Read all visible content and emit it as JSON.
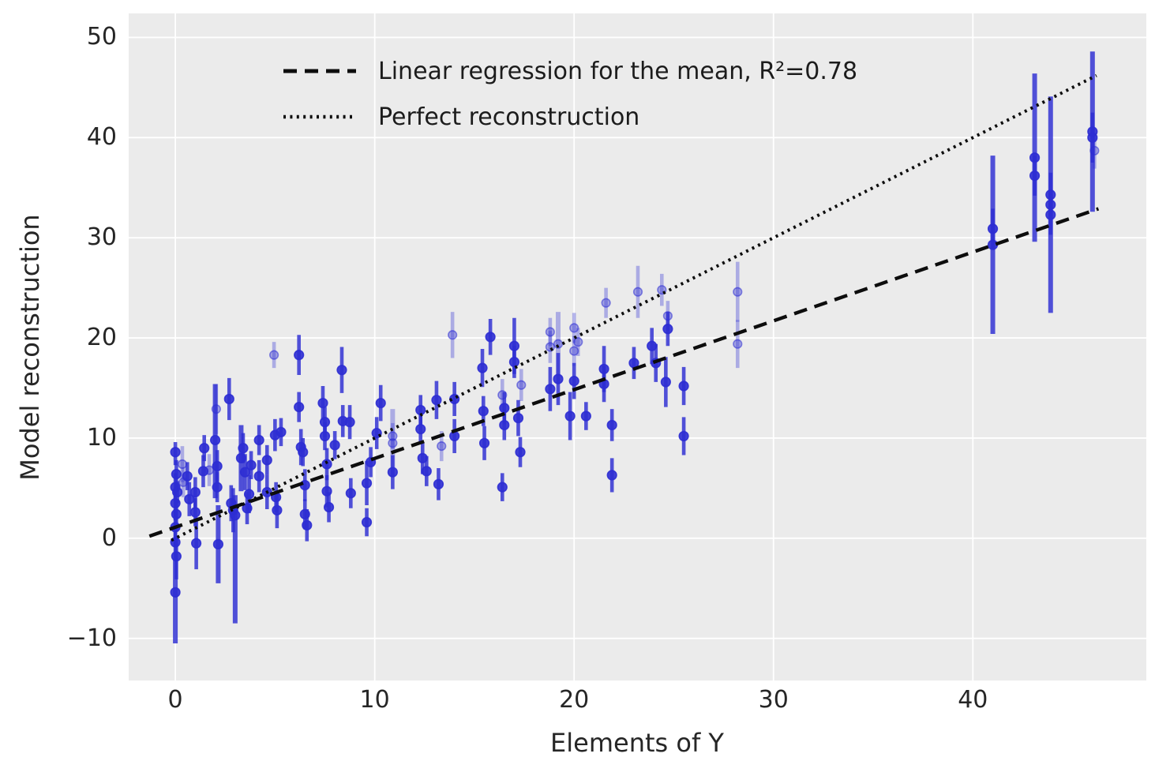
{
  "figure": {
    "background": "#ffffff",
    "axes_background": "#ebebeb",
    "grid_color": "#ffffff",
    "text_color": "#262626",
    "point_color": "#2d2dd3",
    "line_color": "#0d0d0d"
  },
  "chart_data": {
    "type": "scatter",
    "title": "",
    "xlabel": "Elements of Y",
    "ylabel": "Model reconstruction",
    "xlim": [
      -2.34,
      48.7
    ],
    "ylim": [
      -14.2,
      52.4
    ],
    "xticks": [
      0,
      10,
      20,
      30,
      40
    ],
    "yticks": [
      -10,
      0,
      10,
      20,
      30,
      40,
      50
    ],
    "grid": true,
    "legend": {
      "position": "upper left",
      "frame": false,
      "entries": [
        {
          "label": "Linear regression for the mean, R²=0.78",
          "style": "dashed"
        },
        {
          "label": "Perfect reconstruction",
          "style": "dotted"
        }
      ]
    },
    "lines": {
      "regression": {
        "x1": -1.3,
        "y1": 0.21,
        "x2": 46.3,
        "y2": 32.9,
        "slope": 0.687,
        "intercept": 1.1,
        "r_squared": 0.78,
        "style": "dashed"
      },
      "identity": {
        "x1": -0.2,
        "y1": -0.2,
        "x2": 46.2,
        "y2": 46.2,
        "style": "dotted"
      }
    },
    "points_format": [
      "x",
      "y",
      "err_below",
      "err_above",
      "opacity_class_1dark_0light"
    ],
    "points": [
      [
        0.0,
        8.6,
        1.3,
        1.0,
        1
      ],
      [
        0.05,
        6.4,
        1.6,
        1.4,
        1
      ],
      [
        0.0,
        5.1,
        1.4,
        1.4,
        1
      ],
      [
        0.1,
        4.6,
        1.1,
        1.1,
        1
      ],
      [
        0.0,
        3.5,
        1.7,
        1.5,
        1
      ],
      [
        0.05,
        2.4,
        1.5,
        1.5,
        1
      ],
      [
        0.0,
        1.1,
        2.0,
        1.8,
        1
      ],
      [
        0.0,
        -0.4,
        1.6,
        1.6,
        1
      ],
      [
        0.05,
        -1.8,
        2.3,
        2.0,
        1
      ],
      [
        0.0,
        -5.4,
        5.1,
        3.4,
        1
      ],
      [
        0.35,
        7.4,
        1.8,
        1.8,
        0
      ],
      [
        0.4,
        5.6,
        1.5,
        1.5,
        0
      ],
      [
        0.6,
        6.2,
        1.4,
        1.4,
        1
      ],
      [
        0.7,
        3.9,
        1.7,
        1.7,
        1
      ],
      [
        1.0,
        4.6,
        1.5,
        1.5,
        1
      ],
      [
        1.0,
        2.6,
        1.4,
        1.4,
        1
      ],
      [
        1.05,
        -0.5,
        2.6,
        2.6,
        1
      ],
      [
        1.4,
        6.7,
        1.6,
        1.6,
        1
      ],
      [
        1.45,
        9.0,
        1.3,
        1.3,
        1
      ],
      [
        1.7,
        6.8,
        1.6,
        1.6,
        0
      ],
      [
        2.0,
        9.8,
        5.8,
        5.6,
        1
      ],
      [
        2.05,
        12.9,
        2.5,
        2.5,
        0
      ],
      [
        2.1,
        7.2,
        1.6,
        1.6,
        1
      ],
      [
        2.1,
        5.1,
        1.5,
        1.5,
        1
      ],
      [
        2.15,
        -0.6,
        3.9,
        3.9,
        1
      ],
      [
        2.7,
        13.9,
        2.1,
        2.1,
        1
      ],
      [
        2.8,
        3.5,
        1.8,
        1.8,
        1
      ],
      [
        2.9,
        2.8,
        2.2,
        2.2,
        1
      ],
      [
        3.0,
        2.3,
        10.8,
        2.0,
        1
      ],
      [
        3.3,
        8.0,
        3.3,
        3.3,
        1
      ],
      [
        3.4,
        9.0,
        1.5,
        1.5,
        1
      ],
      [
        3.5,
        6.6,
        1.8,
        1.8,
        1
      ],
      [
        3.6,
        3.0,
        1.6,
        1.6,
        1
      ],
      [
        3.7,
        4.4,
        1.9,
        1.9,
        1
      ],
      [
        3.8,
        7.3,
        1.4,
        1.4,
        1
      ],
      [
        4.2,
        9.8,
        1.5,
        1.5,
        1
      ],
      [
        4.2,
        6.2,
        1.6,
        1.6,
        1
      ],
      [
        4.6,
        7.8,
        1.5,
        1.5,
        1
      ],
      [
        4.6,
        4.6,
        1.7,
        1.7,
        1
      ],
      [
        4.95,
        18.3,
        1.3,
        1.3,
        0
      ],
      [
        5.0,
        10.3,
        1.6,
        1.6,
        1
      ],
      [
        5.05,
        4.1,
        1.5,
        1.5,
        1
      ],
      [
        5.1,
        2.8,
        1.8,
        1.8,
        1
      ],
      [
        5.3,
        10.6,
        1.4,
        1.4,
        1
      ],
      [
        6.2,
        18.3,
        2.0,
        2.0,
        1
      ],
      [
        6.2,
        13.1,
        1.5,
        1.5,
        1
      ],
      [
        6.3,
        9.1,
        1.8,
        1.8,
        1
      ],
      [
        6.4,
        8.6,
        1.4,
        1.4,
        1
      ],
      [
        6.5,
        5.3,
        1.6,
        1.6,
        1
      ],
      [
        6.5,
        2.4,
        1.5,
        1.5,
        1
      ],
      [
        6.6,
        1.3,
        1.6,
        1.6,
        1
      ],
      [
        7.4,
        13.5,
        1.7,
        1.7,
        1
      ],
      [
        7.5,
        11.6,
        1.5,
        1.5,
        1
      ],
      [
        7.5,
        10.2,
        1.4,
        1.4,
        1
      ],
      [
        7.6,
        7.4,
        1.6,
        1.6,
        1
      ],
      [
        7.6,
        4.7,
        1.6,
        1.6,
        1
      ],
      [
        7.7,
        3.1,
        1.5,
        1.5,
        1
      ],
      [
        8.0,
        9.3,
        1.4,
        1.4,
        1
      ],
      [
        8.35,
        16.8,
        2.3,
        2.3,
        1
      ],
      [
        8.4,
        11.7,
        1.6,
        1.6,
        1
      ],
      [
        8.75,
        11.6,
        1.7,
        1.7,
        1
      ],
      [
        8.8,
        4.5,
        1.5,
        1.5,
        1
      ],
      [
        9.6,
        5.5,
        2.2,
        2.2,
        1
      ],
      [
        9.6,
        1.6,
        1.4,
        1.4,
        1
      ],
      [
        9.8,
        7.6,
        1.5,
        1.5,
        1
      ],
      [
        10.1,
        10.5,
        1.6,
        1.6,
        1
      ],
      [
        10.3,
        13.5,
        1.8,
        1.8,
        1
      ],
      [
        10.9,
        10.2,
        1.3,
        1.3,
        0
      ],
      [
        10.9,
        9.5,
        3.4,
        3.4,
        0
      ],
      [
        10.9,
        6.6,
        1.7,
        1.7,
        1
      ],
      [
        12.3,
        12.8,
        1.5,
        1.5,
        1
      ],
      [
        12.3,
        10.9,
        1.5,
        1.5,
        1
      ],
      [
        12.4,
        8.0,
        1.6,
        1.6,
        1
      ],
      [
        12.6,
        6.7,
        1.5,
        1.5,
        1
      ],
      [
        13.1,
        13.8,
        1.9,
        1.9,
        1
      ],
      [
        13.2,
        5.4,
        1.6,
        1.6,
        1
      ],
      [
        13.35,
        9.2,
        1.5,
        1.5,
        0
      ],
      [
        13.9,
        20.3,
        2.3,
        2.3,
        0
      ],
      [
        14.0,
        13.9,
        1.7,
        1.7,
        1
      ],
      [
        14.0,
        10.2,
        1.7,
        1.7,
        1
      ],
      [
        15.4,
        17.0,
        1.9,
        1.9,
        1
      ],
      [
        15.45,
        12.7,
        1.5,
        1.5,
        1
      ],
      [
        15.5,
        9.5,
        1.7,
        1.7,
        1
      ],
      [
        15.8,
        20.1,
        1.8,
        1.8,
        1
      ],
      [
        16.4,
        14.3,
        1.6,
        1.6,
        0
      ],
      [
        16.4,
        5.1,
        1.4,
        1.4,
        1
      ],
      [
        16.5,
        13.0,
        1.6,
        1.6,
        1
      ],
      [
        16.5,
        11.3,
        1.5,
        1.5,
        1
      ],
      [
        17.0,
        19.2,
        2.8,
        2.8,
        1
      ],
      [
        17.0,
        17.6,
        1.6,
        1.6,
        1
      ],
      [
        17.2,
        12.0,
        1.8,
        1.8,
        1
      ],
      [
        17.3,
        8.6,
        1.5,
        1.5,
        1
      ],
      [
        17.35,
        15.3,
        1.6,
        1.6,
        0
      ],
      [
        18.8,
        20.6,
        1.4,
        1.4,
        0
      ],
      [
        18.8,
        19.1,
        1.6,
        1.6,
        0
      ],
      [
        18.8,
        14.9,
        2.2,
        2.2,
        1
      ],
      [
        19.2,
        19.4,
        3.2,
        3.2,
        0
      ],
      [
        19.2,
        15.9,
        2.6,
        2.6,
        1
      ],
      [
        19.8,
        12.2,
        2.4,
        2.4,
        1
      ],
      [
        20.0,
        21.0,
        1.5,
        1.5,
        0
      ],
      [
        20.0,
        18.7,
        1.5,
        1.5,
        0
      ],
      [
        20.0,
        15.7,
        1.8,
        1.8,
        1
      ],
      [
        20.2,
        19.6,
        1.4,
        1.4,
        0
      ],
      [
        20.6,
        12.2,
        1.4,
        1.4,
        1
      ],
      [
        21.5,
        16.9,
        2.3,
        2.3,
        1
      ],
      [
        21.5,
        15.4,
        1.8,
        1.8,
        1
      ],
      [
        21.6,
        23.5,
        1.5,
        1.5,
        0
      ],
      [
        21.9,
        11.3,
        1.6,
        1.6,
        1
      ],
      [
        21.9,
        6.3,
        1.7,
        1.7,
        1
      ],
      [
        23.0,
        17.5,
        1.6,
        1.6,
        1
      ],
      [
        23.2,
        24.6,
        2.6,
        2.6,
        0
      ],
      [
        23.9,
        19.2,
        1.8,
        1.8,
        1
      ],
      [
        24.1,
        17.5,
        1.9,
        1.9,
        1
      ],
      [
        24.4,
        24.8,
        1.6,
        1.6,
        0
      ],
      [
        24.6,
        15.6,
        2.5,
        2.5,
        1
      ],
      [
        24.7,
        22.2,
        1.5,
        1.5,
        0
      ],
      [
        24.7,
        20.9,
        1.7,
        1.7,
        1
      ],
      [
        25.5,
        15.2,
        1.9,
        1.9,
        1
      ],
      [
        25.5,
        10.2,
        1.9,
        1.9,
        1
      ],
      [
        28.2,
        24.6,
        3.0,
        3.0,
        0
      ],
      [
        28.2,
        19.4,
        2.4,
        2.4,
        0
      ],
      [
        41.0,
        30.9,
        2.0,
        2.0,
        1
      ],
      [
        41.0,
        29.3,
        8.9,
        8.9,
        1
      ],
      [
        43.1,
        38.0,
        8.4,
        8.4,
        1
      ],
      [
        43.1,
        36.2,
        2.0,
        2.0,
        1
      ],
      [
        43.9,
        34.3,
        2.2,
        2.2,
        1
      ],
      [
        43.9,
        33.3,
        10.8,
        10.8,
        1
      ],
      [
        43.9,
        32.3,
        2.0,
        2.0,
        1
      ],
      [
        46.0,
        40.6,
        8.0,
        8.0,
        1
      ],
      [
        46.0,
        40.0,
        2.5,
        2.5,
        1
      ],
      [
        46.1,
        38.7,
        1.8,
        1.8,
        0
      ]
    ]
  }
}
